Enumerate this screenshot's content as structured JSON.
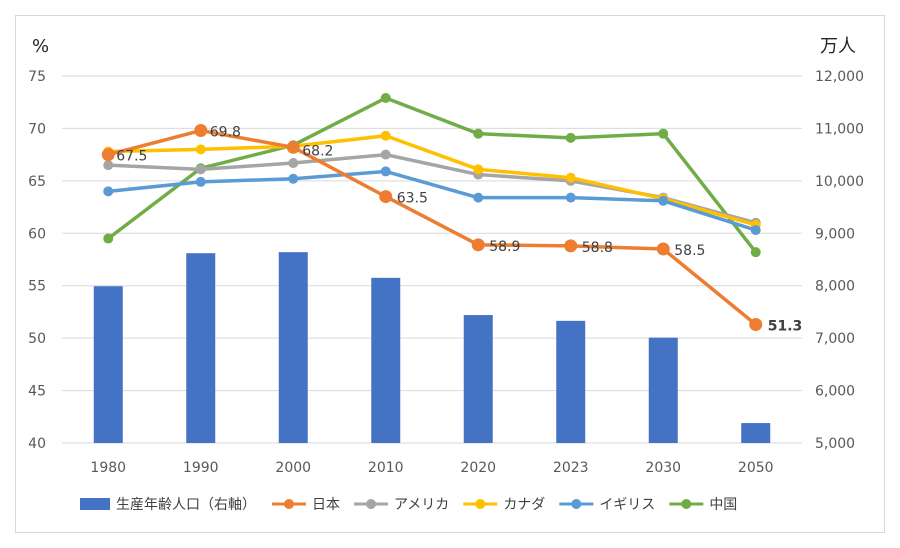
{
  "chart_data": {
    "type": "bar+line",
    "title": "",
    "categories": [
      "1980",
      "1990",
      "2000",
      "2010",
      "2020",
      "2023",
      "2030",
      "2050"
    ],
    "left_axis": {
      "unit_label": "%",
      "min": 40,
      "max": 75,
      "step": 5,
      "tick_labels": [
        "40",
        "45",
        "50",
        "55",
        "60",
        "65",
        "70",
        "75"
      ]
    },
    "right_axis": {
      "unit_label": "万人",
      "min": 5000,
      "max": 12000,
      "step": 1000,
      "tick_labels": [
        "5,000",
        "6,000",
        "7,000",
        "8,000",
        "9,000",
        "10,000",
        "11,000",
        "12,000"
      ]
    },
    "bar_series": {
      "name": "生産年齢人口（右軸）",
      "axis": "right",
      "color": "#4472C4",
      "values": [
        7990,
        8620,
        8640,
        8150,
        7440,
        7330,
        7010,
        5380
      ]
    },
    "line_series": [
      {
        "name": "日本",
        "color": "#ED7D31",
        "values": [
          67.5,
          69.8,
          68.2,
          63.5,
          58.9,
          58.8,
          58.5,
          51.3
        ],
        "labels": [
          "67.5",
          "69.8",
          "68.2",
          "63.5",
          "58.9",
          "58.8",
          "58.5",
          "51.3"
        ]
      },
      {
        "name": "アメリカ",
        "color": "#A5A5A5",
        "values": [
          66.5,
          66.1,
          66.7,
          67.5,
          65.6,
          65.0,
          63.4,
          61.0
        ]
      },
      {
        "name": "カナダ",
        "color": "#FFC000",
        "values": [
          67.8,
          68.0,
          68.3,
          69.3,
          66.1,
          65.3,
          63.3,
          60.8
        ]
      },
      {
        "name": "イギリス",
        "color": "#5B9BD5",
        "values": [
          64.0,
          64.9,
          65.2,
          65.9,
          63.4,
          63.4,
          63.1,
          60.3
        ]
      },
      {
        "name": "中国",
        "color": "#70AD47",
        "values": [
          59.5,
          66.2,
          68.4,
          72.9,
          69.5,
          69.1,
          69.5,
          58.2
        ]
      }
    ],
    "grid": true,
    "legend_position": "bottom"
  }
}
